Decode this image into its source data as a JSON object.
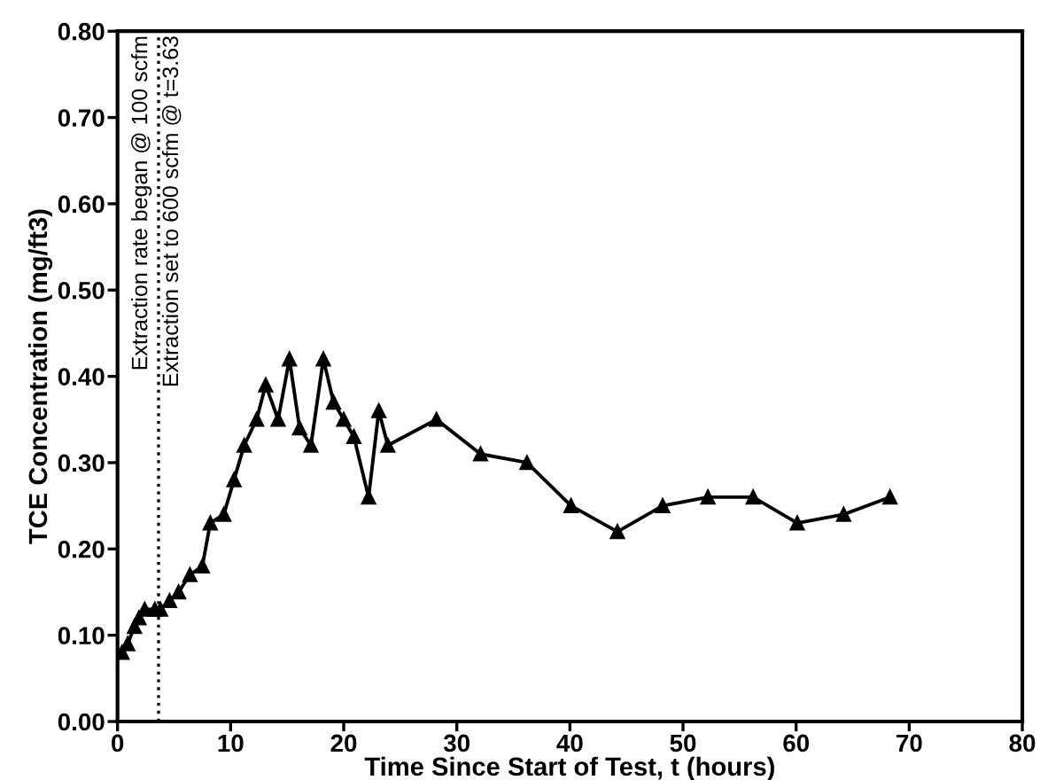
{
  "chart_data": {
    "type": "line",
    "xlabel": "Time Since Start of Test, t (hours)",
    "ylabel": "TCE Concentration (mg/ft3)",
    "x": [
      0.4,
      0.9,
      1.5,
      1.9,
      2.4,
      3.3,
      3.8,
      4.6,
      5.4,
      6.4,
      7.5,
      8.2,
      9.4,
      10.3,
      11.2,
      12.3,
      13.1,
      14.2,
      15.2,
      16.1,
      17.1,
      18.2,
      19.1,
      20.0,
      20.9,
      22.2,
      23.1,
      23.9,
      28.2,
      32.1,
      36.2,
      40.1,
      44.2,
      48.2,
      52.2,
      56.2,
      60.1,
      64.2,
      68.3
    ],
    "series": [
      {
        "color": "#000000",
        "values": [
          0.08,
          0.09,
          0.11,
          0.12,
          0.13,
          0.13,
          0.13,
          0.14,
          0.15,
          0.17,
          0.18,
          0.23,
          0.24,
          0.28,
          0.32,
          0.35,
          0.39,
          0.35,
          0.42,
          0.34,
          0.32,
          0.42,
          0.37,
          0.35,
          0.33,
          0.26,
          0.36,
          0.32,
          0.35,
          0.31,
          0.3,
          0.25,
          0.22,
          0.25,
          0.26,
          0.26,
          0.23,
          0.24,
          0.26
        ]
      }
    ],
    "marker": "triangle",
    "line_style": "solid",
    "xlim": [
      0,
      80
    ],
    "xticks": [
      0,
      10,
      20,
      30,
      40,
      50,
      60,
      70,
      80
    ],
    "ylim": [
      0,
      0.8
    ],
    "yticks": [
      {
        "value": 0,
        "label": "0.00"
      },
      {
        "value": 0.1,
        "label": "0.10"
      },
      {
        "value": 0.2,
        "label": "0.20"
      },
      {
        "value": 0.3,
        "label": "0.30"
      },
      {
        "value": 0.4,
        "label": "0.40"
      },
      {
        "value": 0.5,
        "label": "0.50"
      },
      {
        "value": 0.6,
        "label": "0.60"
      },
      {
        "value": 0.7,
        "label": "0.70"
      },
      {
        "value": 0.8,
        "label": "0.80"
      }
    ],
    "ref_lines": [
      {
        "axis": "x",
        "value": 3.63,
        "label": "Extraction set to 600 scfm @ t=3.63",
        "line_style": "dotted",
        "color": "#000000"
      }
    ],
    "annotations": [
      "Extraction rate began @ 100 scfm"
    ],
    "grid": false,
    "legend": false
  }
}
